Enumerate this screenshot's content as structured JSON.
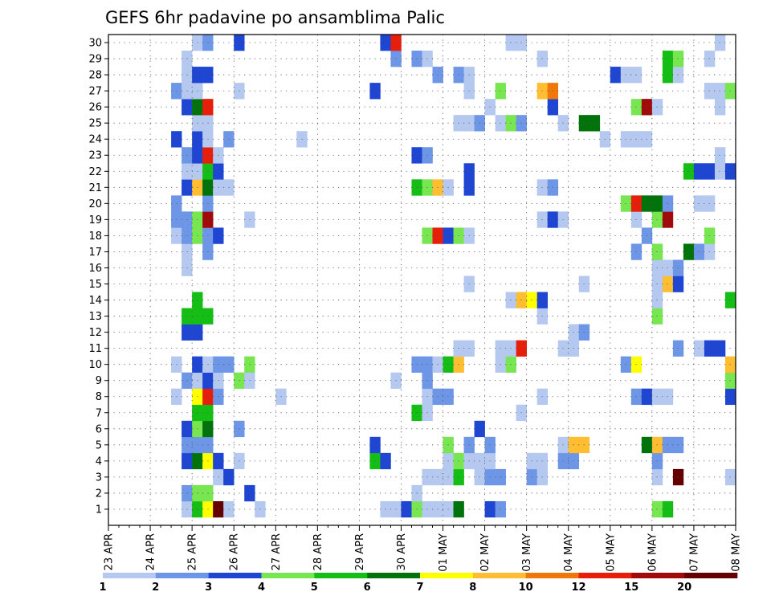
{
  "chart_data": {
    "type": "heatmap",
    "title": "GEFS 6hr padavine po ansamblima Palic",
    "xlabel": "",
    "ylabel": "",
    "x_tick_labels": [
      "23 APR",
      "24 APR",
      "25 APR",
      "26 APR",
      "27 APR",
      "28 APR",
      "29 APR",
      "30 APR",
      "01 MAY",
      "02 MAY",
      "03 MAY",
      "04 MAY",
      "05 MAY",
      "06 MAY",
      "07 MAY",
      "08 MAY"
    ],
    "y_tick_labels": [
      "1",
      "2",
      "3",
      "4",
      "5",
      "6",
      "7",
      "8",
      "9",
      "10",
      "11",
      "12",
      "13",
      "14",
      "15",
      "16",
      "17",
      "18",
      "19",
      "20",
      "21",
      "22",
      "23",
      "24",
      "25",
      "26",
      "27",
      "28",
      "29",
      "30"
    ],
    "xlim": [
      0,
      60
    ],
    "ylim": [
      0.5,
      30.5
    ],
    "x_unit": "6h steps from 23 APR 00Z",
    "grid": true,
    "colorbar": {
      "labels": [
        "1",
        "2",
        "3",
        "4",
        "5",
        "6",
        "7",
        "8",
        "10",
        "12",
        "15",
        "20"
      ],
      "colors": [
        "#b4c8f0",
        "#6e96e6",
        "#1e46d2",
        "#78e650",
        "#14be14",
        "#00730a",
        "#ffff00",
        "#ffbe32",
        "#f0780a",
        "#e61e0a",
        "#a00a0a",
        "#640000"
      ]
    },
    "cells": [
      [
        1,
        8,
        1
      ],
      [
        1,
        9,
        5
      ],
      [
        1,
        10,
        7
      ],
      [
        1,
        11,
        12
      ],
      [
        1,
        12,
        1
      ],
      [
        1,
        15,
        1
      ],
      [
        1,
        27,
        1
      ],
      [
        1,
        28,
        1
      ],
      [
        1,
        29,
        3
      ],
      [
        1,
        30,
        4
      ],
      [
        1,
        31,
        1
      ],
      [
        1,
        32,
        1
      ],
      [
        1,
        33,
        1
      ],
      [
        1,
        34,
        6
      ],
      [
        1,
        37,
        3
      ],
      [
        1,
        38,
        2
      ],
      [
        1,
        53,
        4
      ],
      [
        1,
        54,
        5
      ],
      [
        2,
        8,
        2
      ],
      [
        2,
        9,
        4
      ],
      [
        2,
        10,
        4
      ],
      [
        2,
        14,
        3
      ],
      [
        2,
        30,
        1
      ],
      [
        3,
        11,
        1
      ],
      [
        3,
        12,
        3
      ],
      [
        3,
        31,
        1
      ],
      [
        3,
        32,
        1
      ],
      [
        3,
        33,
        1
      ],
      [
        3,
        34,
        5
      ],
      [
        3,
        36,
        1
      ],
      [
        3,
        37,
        2
      ],
      [
        3,
        38,
        2
      ],
      [
        3,
        41,
        2
      ],
      [
        3,
        42,
        1
      ],
      [
        3,
        53,
        1
      ],
      [
        3,
        55,
        12
      ],
      [
        3,
        60,
        1
      ],
      [
        4,
        8,
        3
      ],
      [
        4,
        9,
        6
      ],
      [
        4,
        10,
        7
      ],
      [
        4,
        11,
        3
      ],
      [
        4,
        13,
        1
      ],
      [
        4,
        26,
        5
      ],
      [
        4,
        27,
        3
      ],
      [
        4,
        33,
        1
      ],
      [
        4,
        34,
        4
      ],
      [
        4,
        35,
        1
      ],
      [
        4,
        36,
        1
      ],
      [
        4,
        37,
        1
      ],
      [
        4,
        41,
        1
      ],
      [
        4,
        42,
        1
      ],
      [
        4,
        44,
        2
      ],
      [
        4,
        45,
        2
      ],
      [
        4,
        53,
        2
      ],
      [
        5,
        8,
        2
      ],
      [
        5,
        9,
        2
      ],
      [
        5,
        10,
        2
      ],
      [
        5,
        26,
        3
      ],
      [
        5,
        33,
        4
      ],
      [
        5,
        35,
        2
      ],
      [
        5,
        37,
        2
      ],
      [
        5,
        44,
        1
      ],
      [
        5,
        45,
        8
      ],
      [
        5,
        46,
        8
      ],
      [
        5,
        52,
        6
      ],
      [
        5,
        53,
        8
      ],
      [
        5,
        54,
        2
      ],
      [
        5,
        55,
        2
      ],
      [
        6,
        8,
        3
      ],
      [
        6,
        9,
        4
      ],
      [
        6,
        10,
        6
      ],
      [
        6,
        13,
        2
      ],
      [
        6,
        36,
        3
      ],
      [
        7,
        9,
        5
      ],
      [
        7,
        10,
        5
      ],
      [
        7,
        30,
        5
      ],
      [
        7,
        31,
        1
      ],
      [
        7,
        40,
        1
      ],
      [
        8,
        7,
        1
      ],
      [
        8,
        9,
        7
      ],
      [
        8,
        10,
        10
      ],
      [
        8,
        11,
        2
      ],
      [
        8,
        17,
        1
      ],
      [
        8,
        31,
        1
      ],
      [
        8,
        32,
        2
      ],
      [
        8,
        33,
        2
      ],
      [
        8,
        42,
        1
      ],
      [
        8,
        51,
        2
      ],
      [
        8,
        52,
        3
      ],
      [
        8,
        53,
        1
      ],
      [
        8,
        54,
        1
      ],
      [
        8,
        60,
        3
      ],
      [
        9,
        8,
        2
      ],
      [
        9,
        9,
        1
      ],
      [
        9,
        10,
        3
      ],
      [
        9,
        11,
        1
      ],
      [
        9,
        13,
        4
      ],
      [
        9,
        14,
        1
      ],
      [
        9,
        28,
        1
      ],
      [
        9,
        31,
        2
      ],
      [
        9,
        60,
        4
      ],
      [
        10,
        7,
        1
      ],
      [
        10,
        9,
        3
      ],
      [
        10,
        10,
        1
      ],
      [
        10,
        11,
        2
      ],
      [
        10,
        12,
        2
      ],
      [
        10,
        14,
        4
      ],
      [
        10,
        30,
        2
      ],
      [
        10,
        31,
        2
      ],
      [
        10,
        32,
        1
      ],
      [
        10,
        33,
        5
      ],
      [
        10,
        34,
        8
      ],
      [
        10,
        38,
        1
      ],
      [
        10,
        39,
        4
      ],
      [
        10,
        50,
        2
      ],
      [
        10,
        51,
        7
      ],
      [
        10,
        60,
        8
      ],
      [
        11,
        34,
        1
      ],
      [
        11,
        35,
        1
      ],
      [
        11,
        38,
        1
      ],
      [
        11,
        39,
        1
      ],
      [
        11,
        40,
        10
      ],
      [
        11,
        44,
        1
      ],
      [
        11,
        45,
        1
      ],
      [
        11,
        55,
        2
      ],
      [
        11,
        57,
        1
      ],
      [
        11,
        58,
        3
      ],
      [
        11,
        59,
        3
      ],
      [
        12,
        8,
        3
      ],
      [
        12,
        9,
        3
      ],
      [
        12,
        45,
        1
      ],
      [
        12,
        46,
        2
      ],
      [
        13,
        8,
        5
      ],
      [
        13,
        9,
        5
      ],
      [
        13,
        10,
        5
      ],
      [
        13,
        42,
        1
      ],
      [
        13,
        53,
        4
      ],
      [
        14,
        9,
        5
      ],
      [
        14,
        39,
        1
      ],
      [
        14,
        40,
        8
      ],
      [
        14,
        41,
        7
      ],
      [
        14,
        42,
        3
      ],
      [
        14,
        53,
        1
      ],
      [
        14,
        60,
        5
      ],
      [
        15,
        35,
        1
      ],
      [
        15,
        46,
        1
      ],
      [
        15,
        53,
        1
      ],
      [
        15,
        54,
        8
      ],
      [
        15,
        55,
        3
      ],
      [
        16,
        8,
        1
      ],
      [
        16,
        53,
        1
      ],
      [
        16,
        54,
        1
      ],
      [
        16,
        55,
        2
      ],
      [
        17,
        8,
        1
      ],
      [
        17,
        10,
        2
      ],
      [
        17,
        51,
        2
      ],
      [
        17,
        53,
        4
      ],
      [
        17,
        56,
        6
      ],
      [
        17,
        57,
        2
      ],
      [
        17,
        58,
        1
      ],
      [
        18,
        7,
        1
      ],
      [
        18,
        8,
        2
      ],
      [
        18,
        9,
        4
      ],
      [
        18,
        10,
        2
      ],
      [
        18,
        11,
        3
      ],
      [
        18,
        31,
        4
      ],
      [
        18,
        32,
        10
      ],
      [
        18,
        33,
        3
      ],
      [
        18,
        34,
        4
      ],
      [
        18,
        35,
        1
      ],
      [
        18,
        52,
        2
      ],
      [
        18,
        58,
        4
      ],
      [
        19,
        7,
        2
      ],
      [
        19,
        8,
        2
      ],
      [
        19,
        9,
        4
      ],
      [
        19,
        10,
        11
      ],
      [
        19,
        14,
        1
      ],
      [
        19,
        42,
        1
      ],
      [
        19,
        43,
        3
      ],
      [
        19,
        44,
        1
      ],
      [
        19,
        51,
        1
      ],
      [
        19,
        53,
        4
      ],
      [
        19,
        54,
        11
      ],
      [
        20,
        7,
        2
      ],
      [
        20,
        10,
        2
      ],
      [
        20,
        50,
        4
      ],
      [
        20,
        51,
        10
      ],
      [
        20,
        52,
        6
      ],
      [
        20,
        53,
        6
      ],
      [
        20,
        54,
        2
      ],
      [
        20,
        57,
        1
      ],
      [
        20,
        58,
        1
      ],
      [
        21,
        8,
        3
      ],
      [
        21,
        9,
        8
      ],
      [
        21,
        10,
        6
      ],
      [
        21,
        11,
        1
      ],
      [
        21,
        12,
        1
      ],
      [
        21,
        30,
        5
      ],
      [
        21,
        31,
        4
      ],
      [
        21,
        32,
        8
      ],
      [
        21,
        33,
        1
      ],
      [
        21,
        35,
        3
      ],
      [
        21,
        42,
        1
      ],
      [
        21,
        43,
        2
      ],
      [
        22,
        8,
        1
      ],
      [
        22,
        9,
        1
      ],
      [
        22,
        10,
        5
      ],
      [
        22,
        11,
        3
      ],
      [
        22,
        35,
        3
      ],
      [
        22,
        56,
        5
      ],
      [
        22,
        57,
        3
      ],
      [
        22,
        58,
        3
      ],
      [
        22,
        59,
        1
      ],
      [
        22,
        60,
        3
      ],
      [
        23,
        8,
        2
      ],
      [
        23,
        9,
        3
      ],
      [
        23,
        10,
        10
      ],
      [
        23,
        11,
        1
      ],
      [
        23,
        30,
        3
      ],
      [
        23,
        31,
        2
      ],
      [
        23,
        59,
        1
      ],
      [
        24,
        7,
        3
      ],
      [
        24,
        9,
        3
      ],
      [
        24,
        10,
        1
      ],
      [
        24,
        12,
        2
      ],
      [
        24,
        19,
        1
      ],
      [
        24,
        48,
        1
      ],
      [
        24,
        50,
        1
      ],
      [
        24,
        51,
        1
      ],
      [
        24,
        52,
        1
      ],
      [
        25,
        9,
        1
      ],
      [
        25,
        10,
        1
      ],
      [
        25,
        34,
        1
      ],
      [
        25,
        35,
        1
      ],
      [
        25,
        36,
        2
      ],
      [
        25,
        38,
        1
      ],
      [
        25,
        39,
        4
      ],
      [
        25,
        40,
        2
      ],
      [
        25,
        44,
        1
      ],
      [
        25,
        46,
        6
      ],
      [
        25,
        47,
        6
      ],
      [
        26,
        8,
        3
      ],
      [
        26,
        9,
        6
      ],
      [
        26,
        10,
        10
      ],
      [
        26,
        37,
        1
      ],
      [
        26,
        43,
        3
      ],
      [
        26,
        51,
        4
      ],
      [
        26,
        52,
        11
      ],
      [
        26,
        53,
        1
      ],
      [
        26,
        59,
        1
      ],
      [
        27,
        7,
        2
      ],
      [
        27,
        8,
        1
      ],
      [
        27,
        9,
        1
      ],
      [
        27,
        13,
        1
      ],
      [
        27,
        26,
        3
      ],
      [
        27,
        35,
        1
      ],
      [
        27,
        38,
        4
      ],
      [
        27,
        42,
        8
      ],
      [
        27,
        43,
        9
      ],
      [
        27,
        58,
        1
      ],
      [
        27,
        59,
        1
      ],
      [
        27,
        60,
        4
      ],
      [
        28,
        8,
        1
      ],
      [
        28,
        9,
        3
      ],
      [
        28,
        10,
        3
      ],
      [
        28,
        32,
        2
      ],
      [
        28,
        34,
        2
      ],
      [
        28,
        35,
        1
      ],
      [
        28,
        49,
        3
      ],
      [
        28,
        50,
        1
      ],
      [
        28,
        51,
        1
      ],
      [
        28,
        54,
        5
      ],
      [
        28,
        55,
        1
      ],
      [
        29,
        8,
        1
      ],
      [
        29,
        28,
        2
      ],
      [
        29,
        30,
        2
      ],
      [
        29,
        31,
        1
      ],
      [
        29,
        42,
        1
      ],
      [
        29,
        54,
        5
      ],
      [
        29,
        55,
        4
      ],
      [
        29,
        58,
        1
      ],
      [
        30,
        9,
        1
      ],
      [
        30,
        10,
        2
      ],
      [
        30,
        13,
        3
      ],
      [
        30,
        27,
        3
      ],
      [
        30,
        28,
        10
      ],
      [
        30,
        39,
        1
      ],
      [
        30,
        40,
        1
      ],
      [
        30,
        59,
        1
      ]
    ]
  }
}
